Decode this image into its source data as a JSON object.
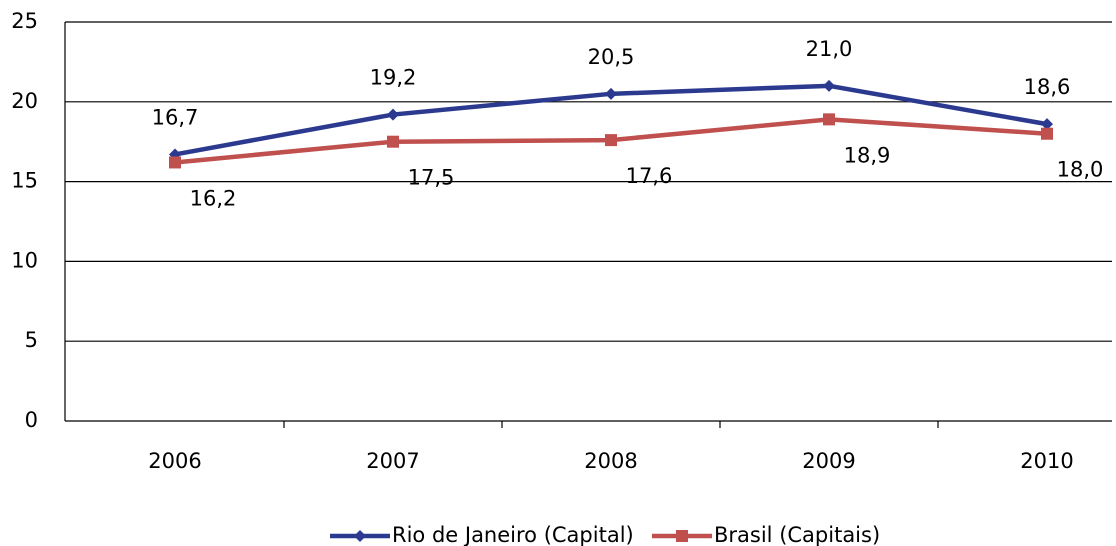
{
  "chart_data": {
    "type": "line",
    "categories": [
      "2006",
      "2007",
      "2008",
      "2009",
      "2010"
    ],
    "series": [
      {
        "name": "Rio de Janeiro (Capital)",
        "color": "#2b3a8f",
        "marker": "diamond",
        "values": [
          16.7,
          19.2,
          20.5,
          21.0,
          18.6
        ],
        "value_labels": [
          "16,7",
          "19,2",
          "20,5",
          "21,0",
          "18,6"
        ]
      },
      {
        "name": "Brasil (Capitais)",
        "color": "#c0504d",
        "marker": "square",
        "values": [
          16.2,
          17.5,
          17.6,
          18.9,
          18.0
        ],
        "value_labels": [
          "16,2",
          "17,5",
          "17,6",
          "18,9",
          "18,0"
        ]
      }
    ],
    "ylim": [
      0,
      25
    ],
    "yticks": [
      0,
      5,
      10,
      15,
      20,
      25
    ],
    "grid": true,
    "legend": "bottom"
  }
}
